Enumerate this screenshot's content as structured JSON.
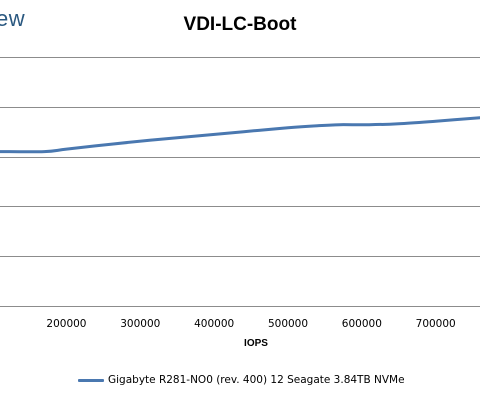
{
  "logo": {
    "text": "ew"
  },
  "chart_data": {
    "type": "line",
    "title": "VDI-LC-Boot",
    "xlabel": "IOPS",
    "ylabel": "",
    "xlim": [
      110000,
      760000
    ],
    "ylim": [
      0,
      5
    ],
    "grid": true,
    "legend_position": "bottom",
    "x_ticks": [
      200000,
      300000,
      400000,
      500000,
      600000,
      700000
    ],
    "y_gridlines": [
      0,
      1,
      2,
      3,
      4,
      5
    ],
    "series": [
      {
        "name": "Gigabyte R281-NO0 (rev. 400) 12 Seagate 3.84TB NVMe",
        "color": "#4a78b0",
        "x": [
          110000,
          170000,
          200000,
          260000,
          320000,
          380000,
          440000,
          500000,
          540000,
          570000,
          610000,
          650000,
          700000,
          760000
        ],
        "y": [
          3.1,
          3.1,
          3.15,
          3.25,
          3.34,
          3.42,
          3.5,
          3.58,
          3.62,
          3.64,
          3.64,
          3.66,
          3.71,
          3.78
        ]
      }
    ]
  }
}
